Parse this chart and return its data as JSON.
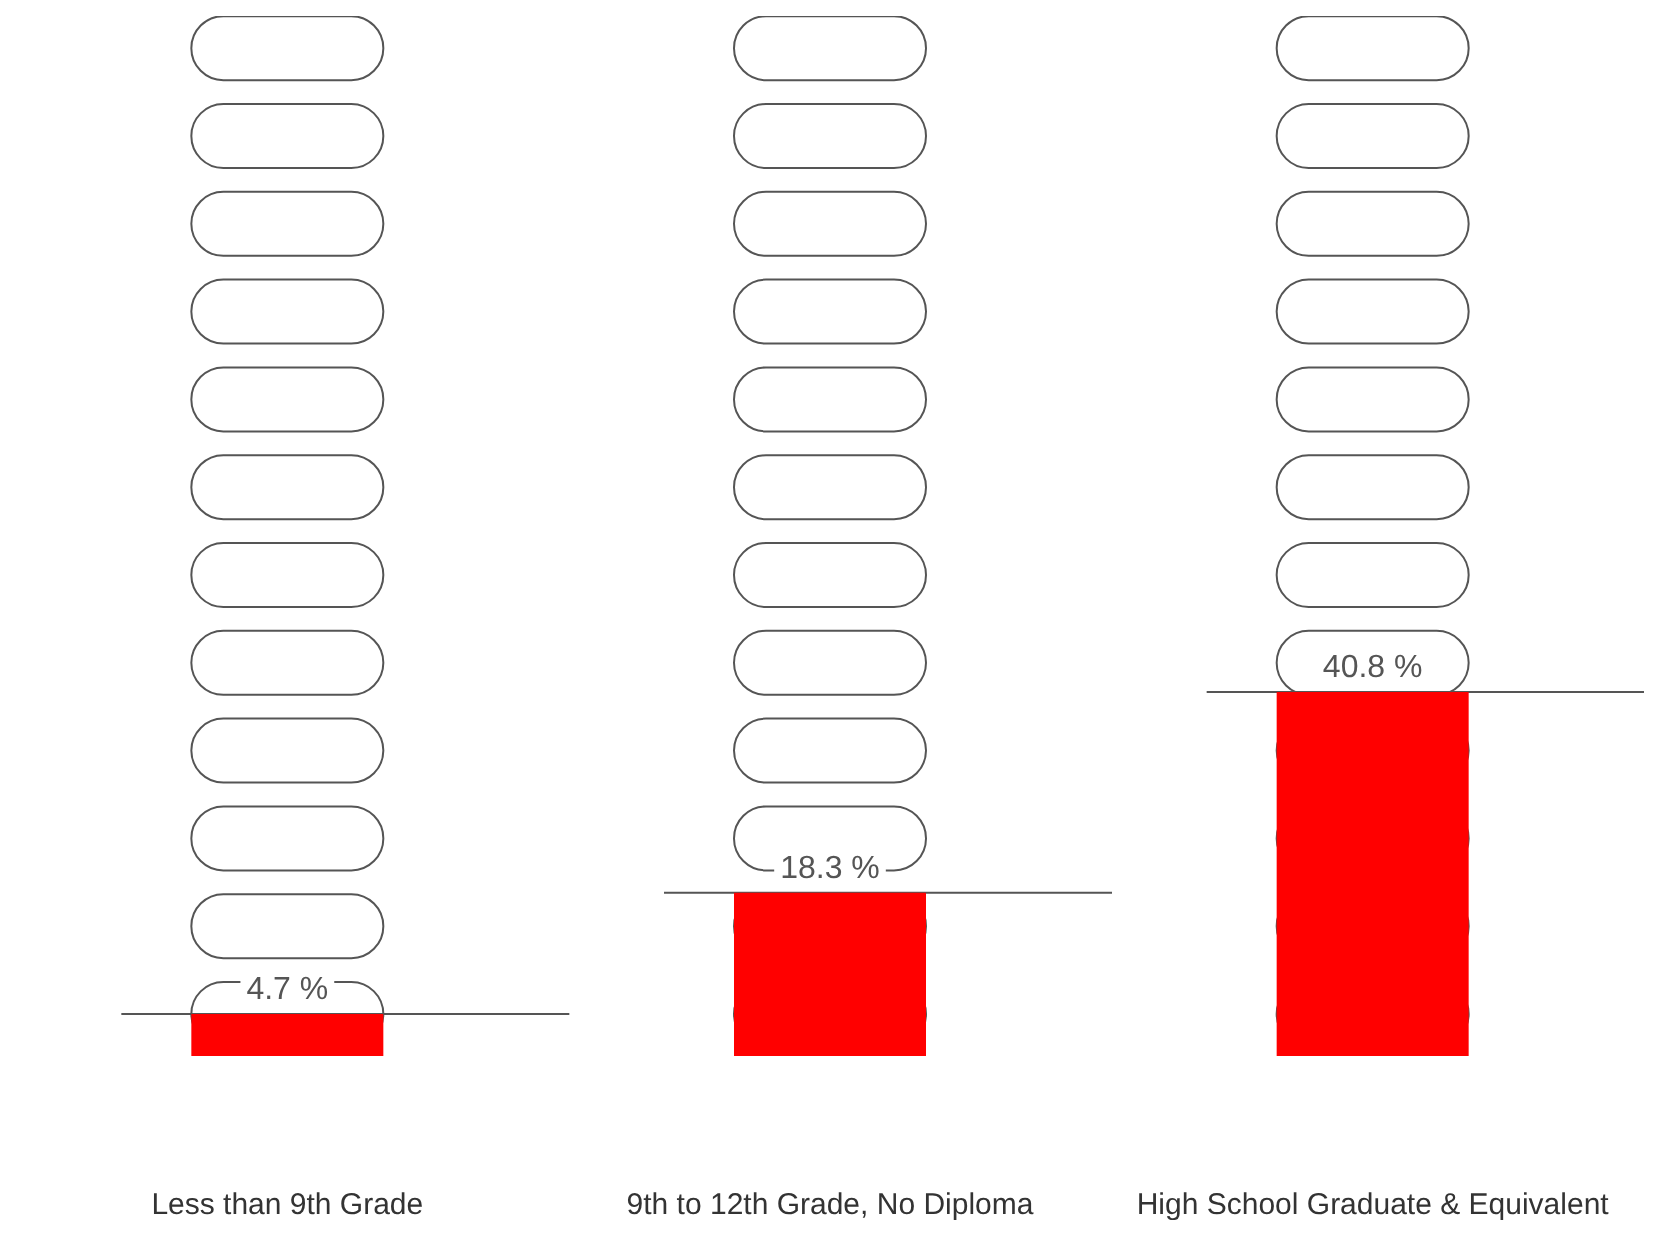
{
  "chart_data": {
    "type": "bar",
    "categories": [
      "Less than 9th Grade",
      "9th to 12th Grade, No Diploma",
      "High School Graduate & Equivalent"
    ],
    "values": [
      4.7,
      18.3,
      40.8
    ],
    "color": "#ff0000",
    "value_labels": [
      "4.7 %",
      "18.3 %",
      "40.8 %"
    ],
    "tick_labels": "x"
  }
}
